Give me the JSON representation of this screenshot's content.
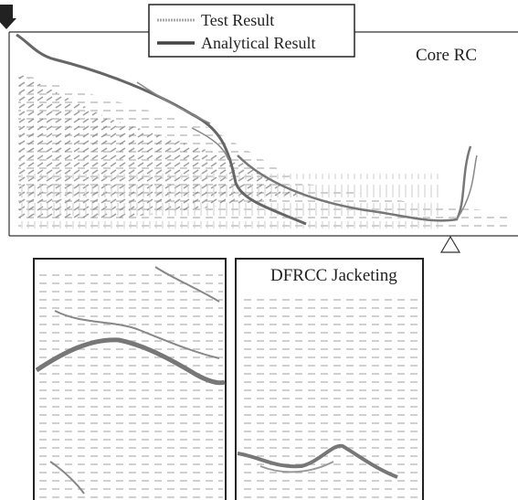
{
  "legend": {
    "items": [
      {
        "label": "Test Result"
      },
      {
        "label": "Analytical Result"
      }
    ]
  },
  "panels": {
    "top": {
      "label": "Core RC"
    },
    "bottom": {
      "label": "DFRCC Jacketing"
    }
  }
}
